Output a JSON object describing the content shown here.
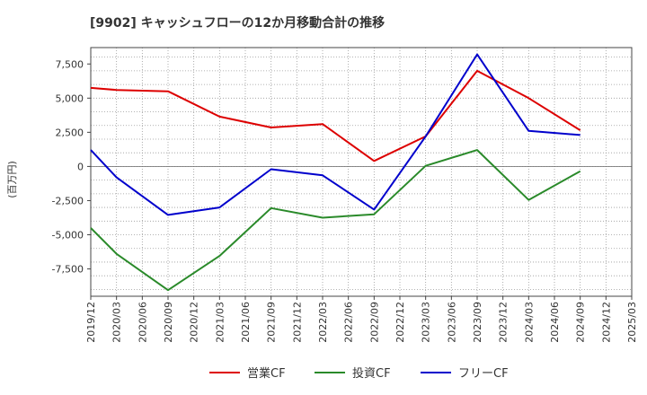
{
  "chart_data": {
    "type": "line",
    "title": "[9902]  キャッシュフローの12か月移動合計の推移",
    "ylabel": "(百万円)",
    "xlabel": "",
    "ylim": [
      -9500,
      8700
    ],
    "yticks": [
      7500,
      5000,
      2500,
      0,
      -2500,
      -5000,
      -7500
    ],
    "ytick_labels": [
      "7,500",
      "5,000",
      "2,500",
      "0",
      "-2,500",
      "-5,000",
      "-7,500"
    ],
    "x_ticks": [
      "2019/12",
      "2020/03",
      "2020/06",
      "2020/09",
      "2020/12",
      "2021/03",
      "2021/06",
      "2021/09",
      "2021/12",
      "2022/03",
      "2022/06",
      "2022/09",
      "2022/12",
      "2023/03",
      "2023/06",
      "2023/09",
      "2023/12",
      "2024/03",
      "2024/06",
      "2024/09",
      "2024/12",
      "2025/03"
    ],
    "grid": true,
    "legend_position": "bottom",
    "series": [
      {
        "name": "営業CF",
        "color": "#dd0000",
        "x": [
          "2019/12",
          "2020/03",
          "2020/09",
          "2021/03",
          "2021/09",
          "2022/03",
          "2022/09",
          "2023/03",
          "2023/09",
          "2024/03",
          "2024/09"
        ],
        "values": [
          5750,
          5600,
          5500,
          3650,
          2850,
          3100,
          400,
          2200,
          7000,
          5000,
          2650
        ]
      },
      {
        "name": "投資CF",
        "color": "#2a8a2a",
        "x": [
          "2019/12",
          "2020/03",
          "2020/09",
          "2021/03",
          "2021/09",
          "2022/03",
          "2022/09",
          "2023/03",
          "2023/09",
          "2024/03",
          "2024/09"
        ],
        "values": [
          -4500,
          -6400,
          -9050,
          -6550,
          -3050,
          -3750,
          -3500,
          50,
          1200,
          -2450,
          -350
        ]
      },
      {
        "name": "フリーCF",
        "color": "#0000cc",
        "x": [
          "2019/12",
          "2020/03",
          "2020/09",
          "2021/03",
          "2021/09",
          "2022/03",
          "2022/09",
          "2023/03",
          "2023/09",
          "2024/03",
          "2024/09"
        ],
        "values": [
          1200,
          -800,
          -3550,
          -3000,
          -200,
          -650,
          -3150,
          2200,
          8200,
          2600,
          2300
        ]
      }
    ]
  }
}
